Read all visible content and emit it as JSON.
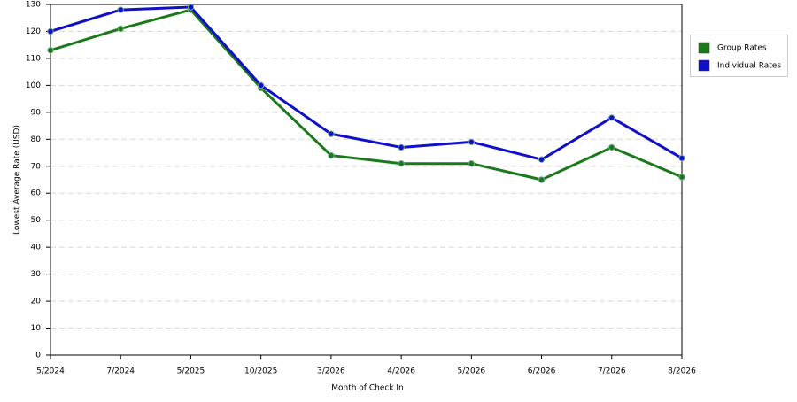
{
  "chart_data": {
    "type": "line",
    "x_label": "Month of Check In",
    "y_label": "Lowest Average Rate (USD)",
    "categories": [
      "5/2024",
      "7/2024",
      "5/2025",
      "10/2025",
      "3/2026",
      "4/2026",
      "5/2026",
      "6/2026",
      "7/2026",
      "8/2026"
    ],
    "series": [
      {
        "name": "Group Rates",
        "color": "#1a7a1a",
        "values": [
          113,
          121,
          128,
          99,
          74,
          71,
          71,
          65,
          77,
          66
        ]
      },
      {
        "name": "Individual Rates",
        "color": "#1010c8",
        "values": [
          120,
          128,
          129,
          100,
          82,
          77,
          79,
          72.5,
          88,
          73
        ]
      }
    ],
    "ylim": [
      0,
      130
    ],
    "yticks": [
      0,
      10,
      20,
      30,
      40,
      50,
      60,
      70,
      80,
      90,
      100,
      110,
      120,
      130
    ],
    "grid": true,
    "legend": "right"
  }
}
